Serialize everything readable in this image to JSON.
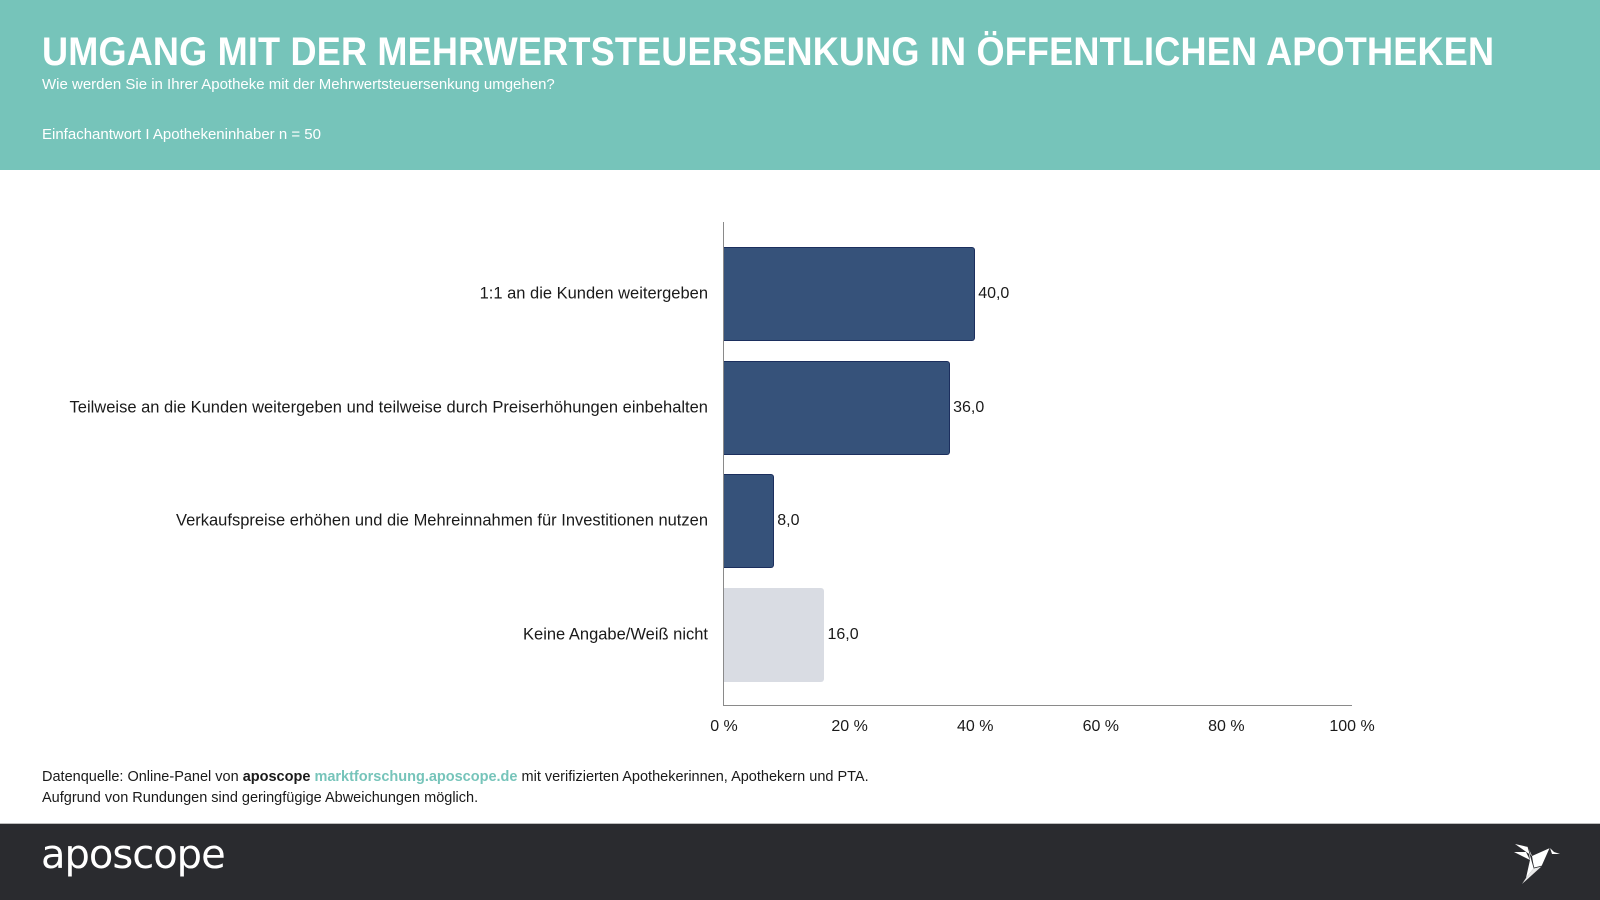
{
  "header": {
    "title": "UMGANG MIT DER MEHRWERTSTEUERSENKUNG IN ÖFFENTLICHEN APOTHEKEN",
    "subtitle": "Wie werden Sie in Ihrer Apotheke mit der Mehrwertsteuersenkung umgehen?",
    "meta": "Einfachantwort I Apothekeninhaber n = 50"
  },
  "colors": {
    "header_bg": "#76c4ba",
    "bar_primary": "#36527a",
    "bar_secondary": "#d9dce3",
    "footer_bg": "#2a2b2f",
    "link": "#76c4ba"
  },
  "chart_data": {
    "type": "bar",
    "orientation": "horizontal",
    "title": "UMGANG MIT DER MEHRWERTSTEUERSENKUNG IN ÖFFENTLICHEN APOTHEKEN",
    "categories": [
      "1:1 an die Kunden weitergeben",
      "Teilweise an die Kunden weitergeben und teilweise durch Preiserhöhungen einbehalten",
      "Verkaufspreise erhöhen und die Mehreinnahmen für Investitionen nutzen",
      "Keine Angabe/Weiß nicht"
    ],
    "values": [
      40.0,
      36.0,
      8.0,
      16.0
    ],
    "value_labels": [
      "40,0",
      "36,0",
      "8,0",
      "16,0"
    ],
    "bar_styles": [
      "primary",
      "primary",
      "primary",
      "secondary"
    ],
    "xlabel": "",
    "ylabel": "",
    "xlim": [
      0,
      100
    ],
    "x_ticks": [
      0,
      20,
      40,
      60,
      80,
      100
    ],
    "x_tick_labels": [
      "0 %",
      "20 %",
      "40 %",
      "60 %",
      "80 %",
      "100 %"
    ],
    "grid": false,
    "legend": "none"
  },
  "source": {
    "prefix": "Datenquelle: Online-Panel von ",
    "brand": "aposcope",
    "link": "marktforschung.aposcope.de",
    "suffix": " mit verifizierten Apothekerinnen, Apothekern und PTA.",
    "note": "Aufgrund von Rundungen sind geringfügige Abweichungen möglich."
  },
  "footer": {
    "logo_text": "aposcope",
    "icon": "origami-bird-icon"
  }
}
